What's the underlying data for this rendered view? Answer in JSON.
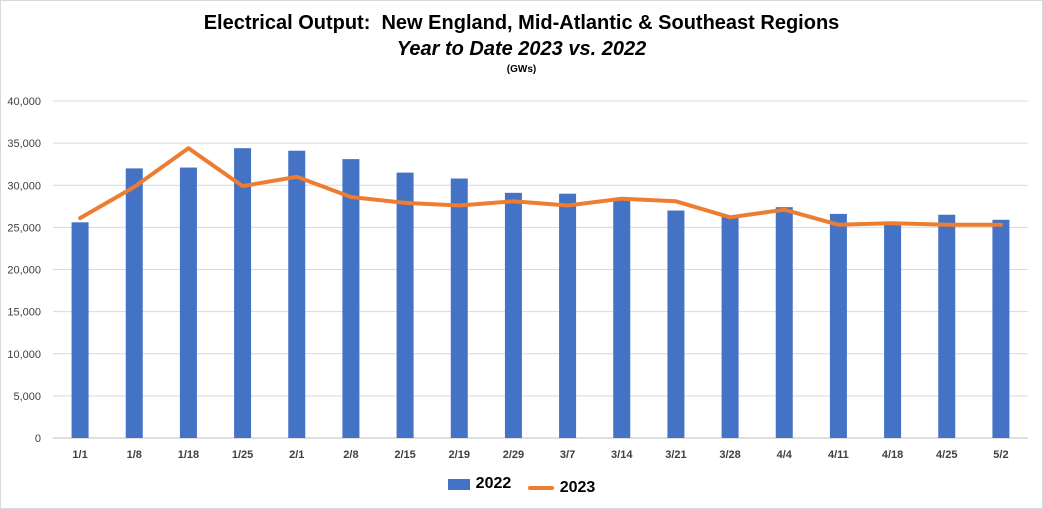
{
  "colors": {
    "bar": "#4472C4",
    "line": "#ED7D31",
    "grid": "#D9D9D9",
    "axis": "#BFBFBF"
  },
  "chart_data": {
    "type": "bar",
    "title": "Electrical Output:  New England, Mid-Atlantic & Southeast Regions",
    "subtitle": "Year to Date 2023 vs. 2022",
    "unit": "(GWs)",
    "categories": [
      "1/1",
      "1/8",
      "1/18",
      "1/25",
      "2/1",
      "2/8",
      "2/15",
      "2/19",
      "2/29",
      "3/7",
      "3/14",
      "3/21",
      "3/28",
      "4/4",
      "4/11",
      "4/18",
      "4/25",
      "5/2"
    ],
    "ylim": [
      0,
      40000
    ],
    "yticks": [
      0,
      5000,
      10000,
      15000,
      20000,
      25000,
      30000,
      35000,
      40000
    ],
    "ytick_labels": [
      "0",
      "5,000",
      "10,000",
      "15,000",
      "20,000",
      "25,000",
      "30,000",
      "35,000",
      "40,000"
    ],
    "grid": true,
    "legend": "bottom",
    "series": [
      {
        "name": "2022",
        "type": "bar",
        "values": [
          25600,
          32000,
          32100,
          34400,
          34100,
          33100,
          31500,
          30800,
          29100,
          29000,
          28400,
          27000,
          26300,
          27400,
          26600,
          25500,
          26500,
          25900
        ]
      },
      {
        "name": "2023",
        "type": "line",
        "values": [
          26100,
          29800,
          34400,
          29900,
          31000,
          28600,
          27900,
          27600,
          28100,
          27600,
          28400,
          28100,
          26200,
          27100,
          25300,
          25500,
          25300,
          25300
        ]
      }
    ]
  }
}
